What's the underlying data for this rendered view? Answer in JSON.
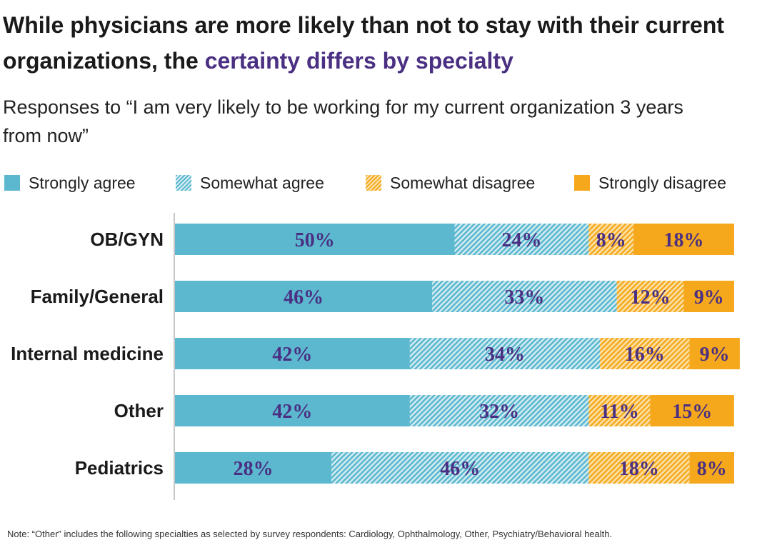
{
  "title": {
    "part1": "While physicians are more likely than not to stay with their current organizations, the ",
    "part2": "certainty differs by specialty"
  },
  "subtitle": "Responses to “I am very likely to be working for my current organization 3 years from now”",
  "colors": {
    "strongly_agree": "#5bb8cf",
    "somewhat_agree": "#5bb8cf",
    "somewhat_disagree": "#f5ab1e",
    "strongly_disagree": "#f5a81c",
    "label_text": "#4a2f82",
    "title_accent": "#4a2f82"
  },
  "chart_data": {
    "type": "bar",
    "orientation": "horizontal",
    "stacked": true,
    "unit": "%",
    "xlim": [
      0,
      100
    ],
    "legend_position": "top",
    "categories": [
      "OB/GYN",
      "Family/General",
      "Internal medicine",
      "Other",
      "Pediatrics"
    ],
    "series": [
      {
        "name": "Strongly agree",
        "pattern": "solid",
        "color": "#5bb8cf",
        "values": [
          50,
          46,
          42,
          42,
          28
        ]
      },
      {
        "name": "Somewhat agree",
        "pattern": "hatched",
        "color": "#5bb8cf",
        "values": [
          24,
          33,
          34,
          32,
          46
        ]
      },
      {
        "name": "Somewhat disagree",
        "pattern": "hatched",
        "color": "#f5ab1e",
        "values": [
          8,
          12,
          16,
          11,
          18
        ]
      },
      {
        "name": "Strongly disagree",
        "pattern": "solid",
        "color": "#f5a81c",
        "values": [
          18,
          9,
          9,
          15,
          8
        ]
      }
    ]
  },
  "note": "Note: “Other” includes the following specialties as selected by survey respondents: Cardiology, Ophthalmology, Other, Psychiatry/Behavioral health."
}
